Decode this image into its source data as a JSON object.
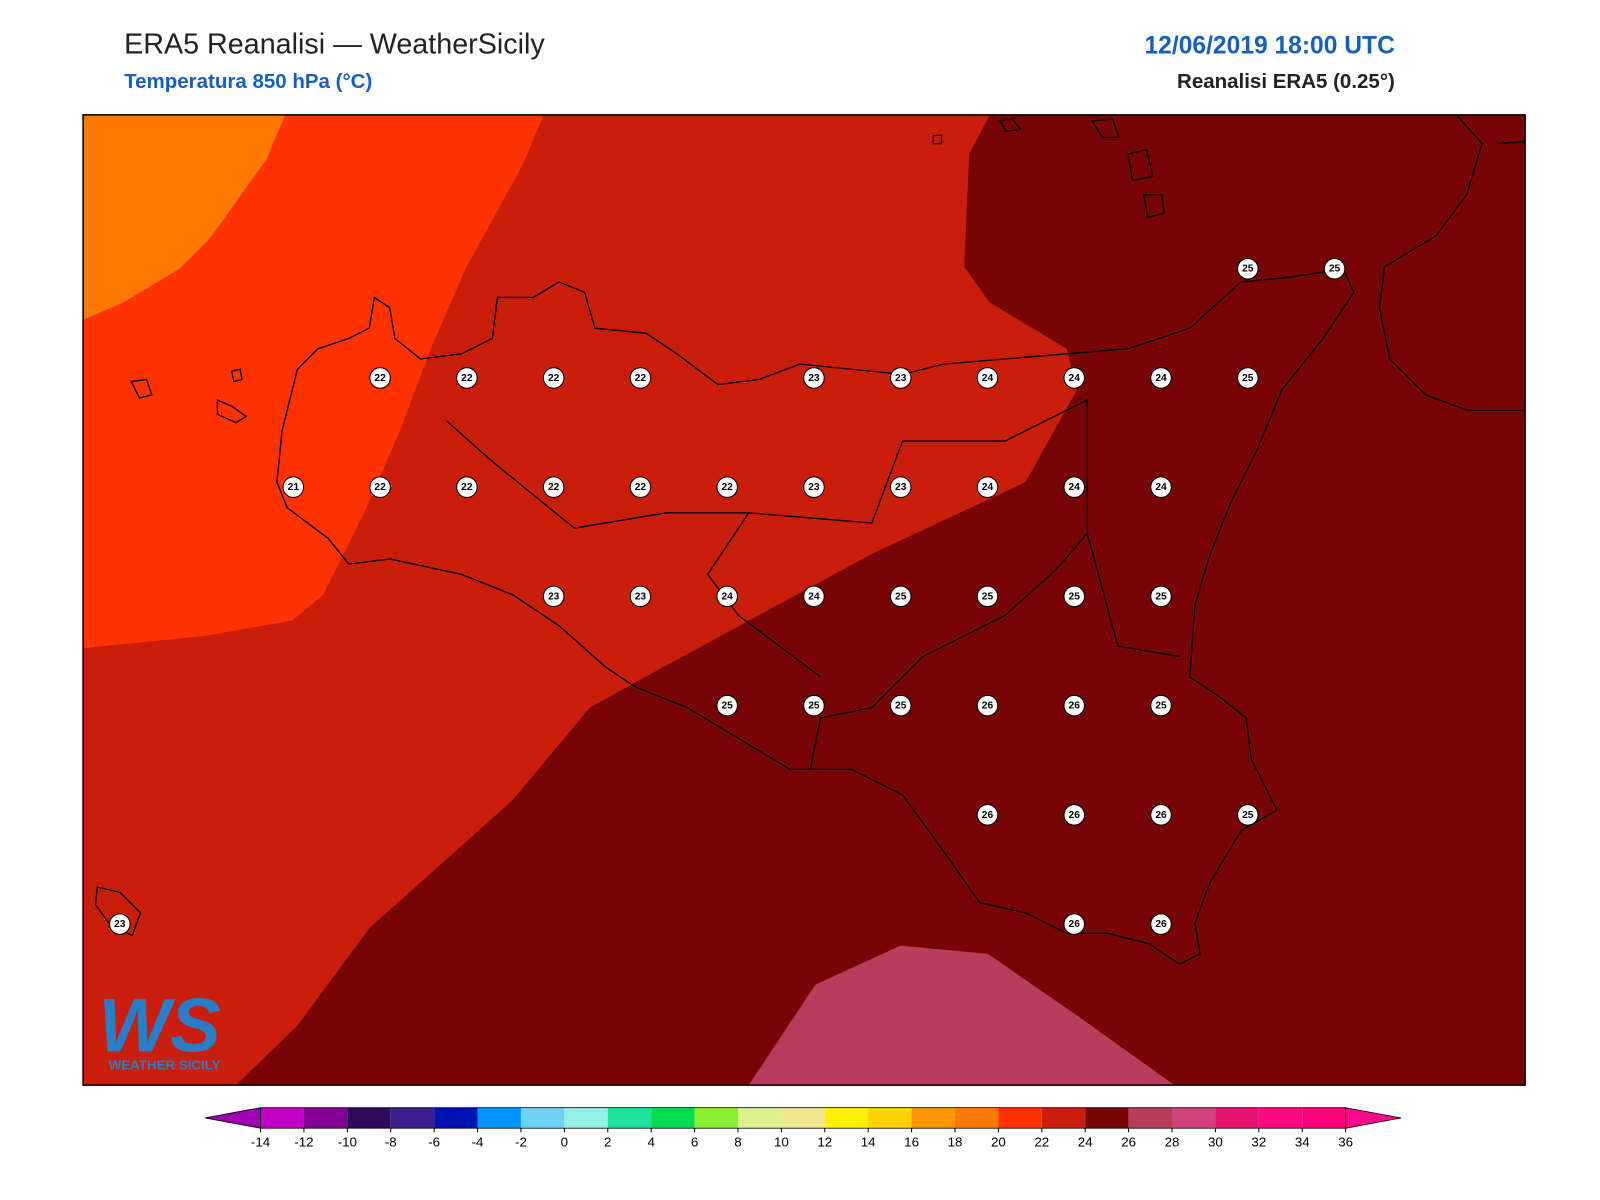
{
  "header": {
    "title": "ERA5 Reanalisi — WeatherSicily",
    "subtitle": "Temperatura 850 hPa (°C)",
    "datetime": "12/06/2019 18:00 UTC",
    "source": "Reanalisi ERA5 (0.25°)"
  },
  "map": {
    "stations": [
      25,
      25,
      22,
      22,
      22,
      22,
      23,
      23,
      24,
      24,
      24,
      25,
      21,
      22,
      22,
      22,
      22,
      22,
      23,
      23,
      24,
      24,
      24,
      23,
      23,
      24,
      24,
      25,
      25,
      25,
      25,
      25,
      25,
      25,
      26,
      26,
      25,
      26,
      26,
      26,
      25,
      23,
      26,
      26
    ]
  },
  "logo": {
    "mark": "WS",
    "text": "WEATHER SICILY"
  },
  "colorbar": {
    "ticks": [
      -14,
      -12,
      -10,
      -8,
      -6,
      -4,
      -2,
      0,
      2,
      4,
      6,
      8,
      10,
      12,
      14,
      16,
      18,
      20,
      22,
      24,
      26,
      28,
      30,
      32,
      34,
      36
    ],
    "colors": [
      "#c000c8",
      "#820096",
      "#2d0a5a",
      "#3c1e8c",
      "#0014b4",
      "#0096ff",
      "#6ed2f5",
      "#96f0e6",
      "#1ee19b",
      "#00dc50",
      "#8cf032",
      "#dcf08c",
      "#f0e68c",
      "#fff000",
      "#ffd200",
      "#ff9600",
      "#ff7800",
      "#ff3200",
      "#c81e0a",
      "#780505",
      "#b93c5a",
      "#d2417d",
      "#e6146e",
      "#ff0a82",
      "#ff0078"
    ],
    "under": "#a000b4",
    "over": "#ff0a8c"
  }
}
